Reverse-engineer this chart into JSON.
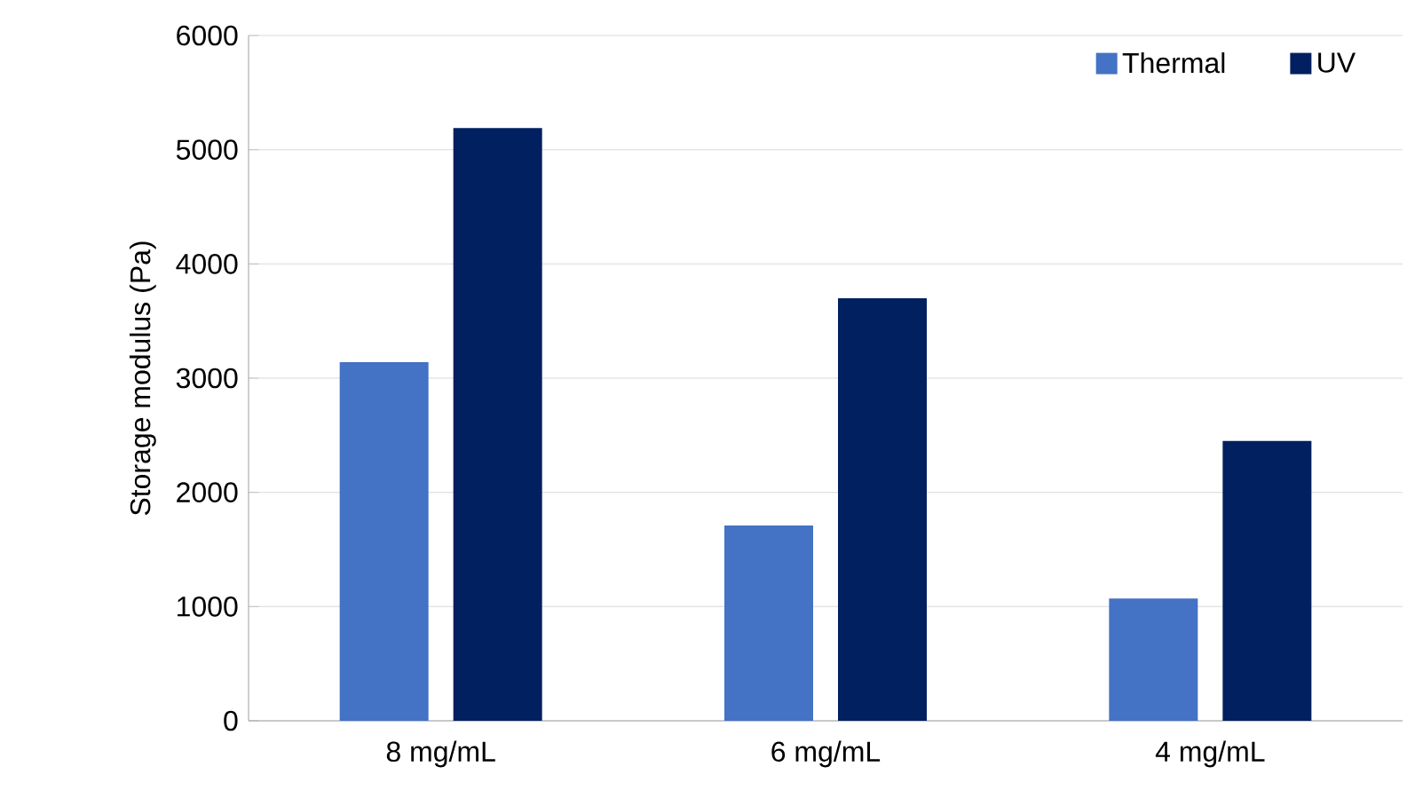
{
  "chart_data": {
    "type": "bar",
    "ylabel": "Storage modulus (Pa)",
    "categories": [
      "8 mg/mL",
      "6 mg/mL",
      "4 mg/mL"
    ],
    "series": [
      {
        "name": "Thermal",
        "color": "#4472c4",
        "values": [
          3140,
          1710,
          1070
        ]
      },
      {
        "name": "UV",
        "color": "#002060",
        "values": [
          5190,
          3700,
          2450
        ]
      }
    ],
    "ylim": [
      0,
      6000
    ],
    "yticks": [
      0,
      1000,
      2000,
      3000,
      4000,
      5000,
      6000
    ],
    "grid": "y",
    "legend": "top right"
  }
}
